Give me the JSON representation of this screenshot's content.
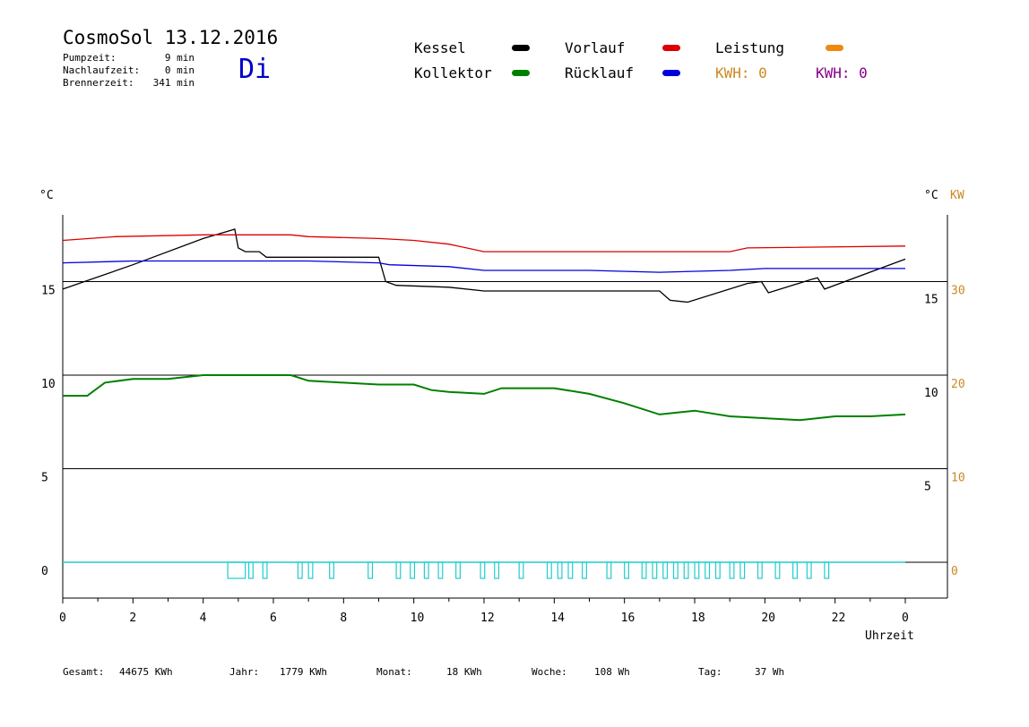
{
  "header": {
    "title": "CosmoSol 13.12.2016",
    "day": "Di",
    "stats": [
      {
        "label": "Pumpzeit:",
        "value": "9 min"
      },
      {
        "label": "Nachlaufzeit:",
        "value": "0 min"
      },
      {
        "label": "Brennerzeit:",
        "value": "341 min"
      }
    ]
  },
  "legend": {
    "kessel": {
      "label": "Kessel",
      "color": "#000000"
    },
    "vorlauf": {
      "label": "Vorlauf",
      "color": "#dd0000"
    },
    "leistung": {
      "label": "Leistung",
      "color": "#ee8a10"
    },
    "kollektor": {
      "label": "Kollektor",
      "color": "#008000"
    },
    "ruecklauf": {
      "label": "Rücklauf",
      "color": "#0000dd"
    },
    "kwh1": "KWH: 0",
    "kwh2": "KWH: 0",
    "kwh1_color": "#cc8822",
    "kwh2_color": "#880088"
  },
  "footer": {
    "gesamt_label": "Gesamt:",
    "gesamt_value": "44675 KWh",
    "jahr_label": "Jahr:",
    "jahr_value": "1779 KWh",
    "monat_label": "Monat:",
    "monat_value": "18 KWh",
    "woche_label": "Woche:",
    "woche_value": "108 Wh",
    "tag_label": "Tag:",
    "tag_value": "37 Wh"
  },
  "chart_data": {
    "type": "line",
    "title": "CosmoSol 13.12.2016",
    "xlabel": "Uhrzeit",
    "ylabel_left": "°C",
    "ylabel_right": "°C",
    "ylabel_right2": "KW",
    "xlim": [
      0,
      24
    ],
    "x_ticks": [
      "0",
      "2",
      "4",
      "6",
      "8",
      "10",
      "12",
      "14",
      "16",
      "18",
      "20",
      "22",
      "0"
    ],
    "ylim": [
      -2,
      18.5
    ],
    "y_ticks_left": [
      "0",
      "5",
      "10",
      "15"
    ],
    "y_ticks_right": [
      "5",
      "10",
      "15"
    ],
    "y_ticks_right2": [
      "0",
      "10",
      "20",
      "30"
    ],
    "grid": "horizontal",
    "colors": {
      "cyan": "#22cccc",
      "axis": "#000000",
      "right2": "#cc8822"
    },
    "series": [
      {
        "name": "Kessel",
        "color": "#000000",
        "x": [
          0,
          2,
          4,
          4.9,
          5,
          5.2,
          5.6,
          5.8,
          9.0,
          9.2,
          9.5,
          11.0,
          12.0,
          17.0,
          17.3,
          17.8,
          19.5,
          19.9,
          20.1,
          21.3,
          21.5,
          21.7,
          24
        ],
        "y": [
          14.6,
          15.9,
          17.3,
          17.8,
          16.8,
          16.6,
          16.6,
          16.3,
          16.3,
          15.0,
          14.8,
          14.7,
          14.5,
          14.5,
          14.0,
          13.9,
          14.9,
          15.0,
          14.4,
          15.1,
          15.2,
          14.6,
          16.2
        ]
      },
      {
        "name": "Vorlauf",
        "color": "#dd0000",
        "x": [
          0,
          1.5,
          4,
          6.5,
          7.0,
          9.0,
          10.0,
          11.0,
          11.5,
          12.0,
          19.0,
          19.5,
          24
        ],
        "y": [
          17.2,
          17.4,
          17.5,
          17.5,
          17.4,
          17.3,
          17.2,
          17.0,
          16.8,
          16.6,
          16.6,
          16.8,
          16.9
        ]
      },
      {
        "name": "Rücklauf",
        "color": "#0000dd",
        "x": [
          0,
          2,
          4,
          6,
          7,
          9.0,
          9.3,
          11.0,
          12.0,
          15.0,
          17.0,
          19.0,
          20.0,
          24
        ],
        "y": [
          16.0,
          16.1,
          16.1,
          16.1,
          16.1,
          16.0,
          15.9,
          15.8,
          15.6,
          15.6,
          15.5,
          15.6,
          15.7,
          15.7
        ]
      },
      {
        "name": "Kollektor",
        "color": "#008000",
        "x": [
          0,
          0.7,
          1.2,
          2.0,
          2.5,
          3.0,
          4.0,
          5.0,
          6.0,
          6.5,
          7.0,
          8.0,
          9.0,
          10.0,
          10.5,
          11.0,
          12.0,
          12.5,
          14.0,
          15.0,
          16.0,
          17.0,
          18.0,
          19.0,
          20.0,
          21.0,
          22.0,
          23.0,
          24.0
        ],
        "y": [
          8.9,
          8.9,
          9.6,
          9.8,
          9.8,
          9.8,
          10.0,
          10.0,
          10.0,
          10.0,
          9.7,
          9.6,
          9.5,
          9.5,
          9.2,
          9.1,
          9.0,
          9.3,
          9.3,
          9.0,
          8.5,
          7.9,
          8.1,
          7.8,
          7.7,
          7.6,
          7.8,
          7.8,
          7.9
        ]
      },
      {
        "name": "Leistung",
        "color": "#ee8a10",
        "x": [
          0,
          24
        ],
        "y": [
          0,
          0
        ]
      }
    ]
  }
}
